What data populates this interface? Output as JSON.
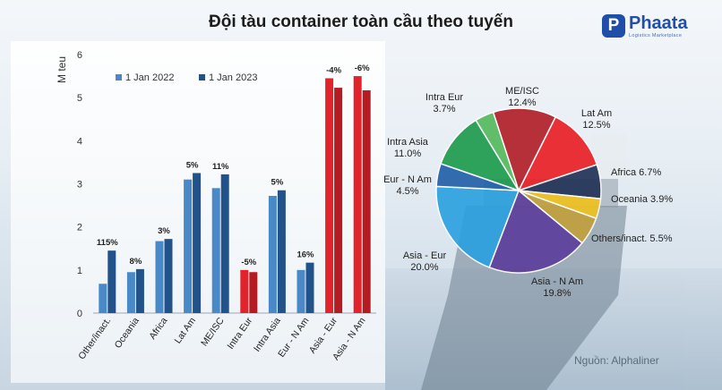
{
  "title": "Đội tàu container toàn cầu theo tuyến",
  "logo": {
    "name": "Phaata",
    "tagline": "Logistics Marketplace",
    "badge": "P"
  },
  "source": "Nguồn: Alphaliner",
  "colors": {
    "s2022": "#4a89c8",
    "s2023": "#22528a",
    "r2022": "#e1242c",
    "r2023": "#b51c22"
  },
  "chart_data": [
    {
      "type": "bar",
      "ylabel": "M teu",
      "ylim": [
        0,
        6
      ],
      "yticks": [
        "0",
        "1",
        "2",
        "3",
        "4",
        "5",
        "6"
      ],
      "categories": [
        "Other/inact.",
        "Oceania",
        "Africa",
        "Lat Am",
        "ME/ISC",
        "Intra Eur",
        "Intra Asia",
        "Eur - N Am",
        "Asia - Eur",
        "Asia - N Am"
      ],
      "series": [
        {
          "name": "1 Jan 2022",
          "values": [
            0.68,
            0.95,
            1.67,
            3.1,
            2.9,
            1.0,
            2.72,
            1.0,
            5.45,
            5.5
          ]
        },
        {
          "name": "1 Jan 2023",
          "values": [
            1.45,
            1.02,
            1.72,
            3.25,
            3.22,
            0.95,
            2.85,
            1.17,
            5.23,
            5.17
          ]
        }
      ],
      "highlighted": [
        "Intra Eur",
        "Asia - Eur",
        "Asia - N Am"
      ],
      "change_labels": [
        "115%",
        "8%",
        "3%",
        "5%",
        "11%",
        "-5%",
        "5%",
        "16%",
        "-4%",
        "-6%"
      ]
    },
    {
      "type": "pie",
      "slices": [
        {
          "label": "ME/ISC",
          "value": 12.4,
          "pct": "12.4%",
          "color": "#b01c24"
        },
        {
          "label": "Lat Am",
          "value": 12.5,
          "pct": "12.5%",
          "color": "#ea1c23"
        },
        {
          "label": "Africa",
          "value": 6.7,
          "pct": "6.7%",
          "color": "#1e2f55"
        },
        {
          "label": "Oceania",
          "value": 3.9,
          "pct": "3.9%",
          "color": "#f0c21c"
        },
        {
          "label": "Others/inact.",
          "value": 5.5,
          "pct": "5.5%",
          "color": "#c2a03a"
        },
        {
          "label": "Asia - N Am",
          "value": 19.8,
          "pct": "19.8%",
          "color": "#5b3c9a"
        },
        {
          "label": "Asia - Eur",
          "value": 20.0,
          "pct": "20.0%",
          "color": "#2aa0e0"
        },
        {
          "label": "Eur - N Am",
          "value": 4.5,
          "pct": "4.5%",
          "color": "#1f5fa8"
        },
        {
          "label": "Intra Asia",
          "value": 11.0,
          "pct": "11.0%",
          "color": "#1a9a4a"
        },
        {
          "label": "Intra Eur",
          "value": 3.7,
          "pct": "3.7%",
          "color": "#52b85a"
        }
      ]
    }
  ]
}
